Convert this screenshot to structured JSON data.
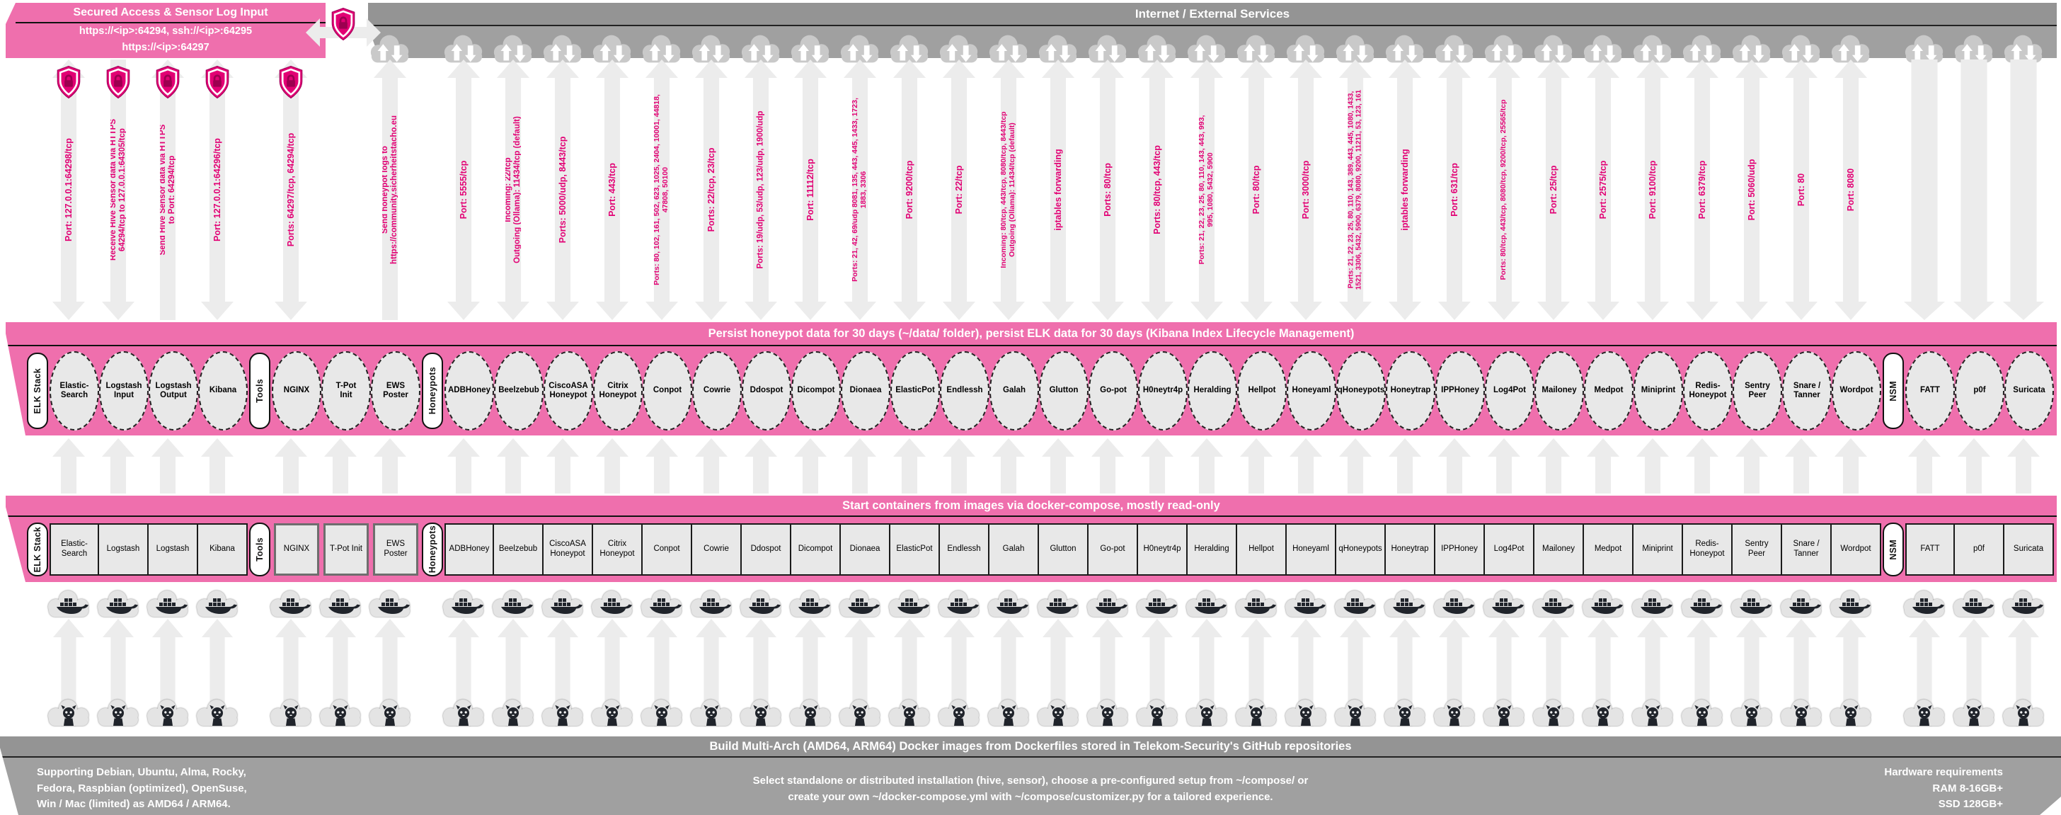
{
  "colors": {
    "telekom_magenta": "#e20074",
    "band_pink": "#ef6fad",
    "banner_gray": "#9c9c9c",
    "node_gray": "#e8e8e8"
  },
  "secured_box": {
    "title": "Secured Access & Sensor Log Input",
    "line1": "https://<ip>:64294, ssh://<ip>:64295",
    "line2": "https://<ip>:64297"
  },
  "internet_banner": {
    "title": "Internet / External Services"
  },
  "persist_band": {
    "title": "Persist honeypot data for 30 days (~/data/ folder), persist ELK data for 30 days (Kibana Index Lifecycle Management)"
  },
  "compose_band": {
    "title": "Start containers from images via docker-compose, mostly read-only"
  },
  "build_band": {
    "title": "Build Multi-Arch (AMD64, ARM64) Docker images from Dockerfiles stored in Telekom-Security's GitHub repositories",
    "left_note": "Supporting Debian, Ubuntu, Alma, Rocky,\nFedora, Raspbian (optimized), OpenSuse,\nWin / Mac (limited) as AMD64 / ARM64.",
    "center_note": "Select standalone or distributed installation (hive, sensor), choose a pre-configured setup from ~/compose/ or\ncreate your own ~/docker-compose.yml with ~/compose/customizer.py for a tailored experience.",
    "right_note": "Hardware requirements\nRAM 8-16GB+\nSSD 128GB+"
  },
  "pills": [
    "ELK Stack",
    "Tools",
    "Honeypots",
    "NSM"
  ],
  "columns": [
    {
      "group": 0,
      "name": "Elastic-\nSearch",
      "box": "Elastic-\nSearch",
      "port": "Port: 127.0.0.1:64298/tcp",
      "arrow": "both",
      "shield": true,
      "cloud": false
    },
    {
      "group": 0,
      "name": "Logstash\nInput",
      "box": "Logstash",
      "port": "Receive Hive Sensor data via HTTPS\n64294/tcp to 127.0.0.1:64305/tcp",
      "arrow": "down",
      "shield": true,
      "cloud": false
    },
    {
      "group": 0,
      "name": "Logstash\nOutput",
      "box": "Logstash",
      "port": "Send Hive Sensor data via HTTPS\nto Port: 64294/tcp",
      "arrow": "up",
      "shield": true,
      "cloud": false
    },
    {
      "group": 0,
      "name": "Kibana",
      "box": "Kibana",
      "port": "Port: 127.0.0.1:64296/tcp",
      "arrow": "both",
      "shield": true,
      "cloud": false
    },
    {
      "group": 1,
      "name": "NGINX",
      "box": "NGINX",
      "port": "Ports: 64297/tcp, 64294/tcp",
      "arrow": "both",
      "shield": true,
      "cloud": false
    },
    {
      "group": 1,
      "name": "T-Pot\nInit",
      "box": "T-Pot Init",
      "port": "",
      "arrow": "none",
      "shield": false,
      "cloud": false
    },
    {
      "group": 1,
      "name": "EWS\nPoster",
      "box": "EWS\nPoster",
      "port": "Send honeypot logs to\nhttps://community.sicherheitstacho.eu",
      "arrow": "up",
      "shield": false,
      "cloud": true
    },
    {
      "group": 2,
      "name": "ADBHoney",
      "box": "ADBHoney",
      "port": "Port: 5555/tcp",
      "arrow": "both",
      "shield": false,
      "cloud": true
    },
    {
      "group": 2,
      "name": "Beelzebub",
      "box": "Beelzebub",
      "port": "Incoming: 22/tcp\nOutgoing (Ollama): 11434/tcp (default)",
      "arrow": "both",
      "shield": false,
      "cloud": true
    },
    {
      "group": 2,
      "name": "CiscoASA\nHoneypot",
      "box": "CiscoASA\nHoneypot",
      "port": "Ports: 5000/udp, 8443/tcp",
      "arrow": "both",
      "shield": false,
      "cloud": true
    },
    {
      "group": 2,
      "name": "Citrix\nHoneypot",
      "box": "Citrix\nHoneypot",
      "port": "Port: 443/tcp",
      "arrow": "both",
      "shield": false,
      "cloud": true
    },
    {
      "group": 2,
      "name": "Conpot",
      "box": "Conpot",
      "port": "Ports: 80, 102, 161, 502, 623, 1025, 2404, 10001, 44818,\n47808, 50100",
      "arrow": "both",
      "shield": false,
      "cloud": true
    },
    {
      "group": 2,
      "name": "Cowrie",
      "box": "Cowrie",
      "port": "Ports: 22/tcp, 23/tcp",
      "arrow": "both",
      "shield": false,
      "cloud": true
    },
    {
      "group": 2,
      "name": "Ddospot",
      "box": "Ddospot",
      "port": "Ports: 19/udp, 53/udp, 123/udp, 1900/udp",
      "arrow": "both",
      "shield": false,
      "cloud": true
    },
    {
      "group": 2,
      "name": "Dicompot",
      "box": "Dicompot",
      "port": "Port: 11112/tcp",
      "arrow": "both",
      "shield": false,
      "cloud": true
    },
    {
      "group": 2,
      "name": "Dionaea",
      "box": "Dionaea",
      "port": "Ports: 21, 42, 69/udp 8081, 135, 443, 445, 1433, 1723,\n1883, 3306",
      "arrow": "both",
      "shield": false,
      "cloud": true
    },
    {
      "group": 2,
      "name": "ElasticPot",
      "box": "ElasticPot",
      "port": "Port: 9200/tcp",
      "arrow": "both",
      "shield": false,
      "cloud": true
    },
    {
      "group": 2,
      "name": "Endlessh",
      "box": "Endlessh",
      "port": "Port: 22/tcp",
      "arrow": "both",
      "shield": false,
      "cloud": true
    },
    {
      "group": 2,
      "name": "Galah",
      "box": "Galah",
      "port": "Incoming: 80/tcp, 443/tcp, 8080/tcp, 8443/tcp\nOutgoing (Ollama): 11434/tcp (default)",
      "arrow": "both",
      "shield": false,
      "cloud": true
    },
    {
      "group": 2,
      "name": "Glutton",
      "box": "Glutton",
      "port": "iptables forwarding",
      "arrow": "both",
      "shield": false,
      "cloud": true
    },
    {
      "group": 2,
      "name": "Go-pot",
      "box": "Go-pot",
      "port": "Ports: 80/tcp",
      "arrow": "both",
      "shield": false,
      "cloud": true
    },
    {
      "group": 2,
      "name": "H0neytr4p",
      "box": "H0neytr4p",
      "port": "Ports: 80/tcp, 443/tcp",
      "arrow": "both",
      "shield": false,
      "cloud": true
    },
    {
      "group": 2,
      "name": "Heralding",
      "box": "Heralding",
      "port": "Ports: 21, 22, 23, 25, 80, 110, 143, 443, 993,\n995, 1080, 5432, 5900",
      "arrow": "both",
      "shield": false,
      "cloud": true
    },
    {
      "group": 2,
      "name": "Hellpot",
      "box": "Hellpot",
      "port": "Port: 80/tcp",
      "arrow": "both",
      "shield": false,
      "cloud": true
    },
    {
      "group": 2,
      "name": "Honeyaml",
      "box": "Honeyaml",
      "port": "Port: 3000/tcp",
      "arrow": "both",
      "shield": false,
      "cloud": true
    },
    {
      "group": 2,
      "name": "qHoneypots",
      "box": "qHoneypots",
      "port": "Ports: 21, 22, 23, 25, 80, 110, 143, 389, 443, 445, 1080, 1433,\n1521, 3306, 5432, 5900, 6379, 8080, 9200, 11211, 53, 123, 161",
      "arrow": "both",
      "shield": false,
      "cloud": true
    },
    {
      "group": 2,
      "name": "Honeytrap",
      "box": "Honeytrap",
      "port": "iptables forwarding",
      "arrow": "both",
      "shield": false,
      "cloud": true
    },
    {
      "group": 2,
      "name": "IPPHoney",
      "box": "IPPHoney",
      "port": "Port: 631/tcp",
      "arrow": "both",
      "shield": false,
      "cloud": true
    },
    {
      "group": 2,
      "name": "Log4Pot",
      "box": "Log4Pot",
      "port": "Ports: 80/tcp, 443/tcp, 8080/tcp, 9200/tcp, 25565/tcp",
      "arrow": "both",
      "shield": false,
      "cloud": true
    },
    {
      "group": 2,
      "name": "Mailoney",
      "box": "Mailoney",
      "port": "Port: 25/tcp",
      "arrow": "both",
      "shield": false,
      "cloud": true
    },
    {
      "group": 2,
      "name": "Medpot",
      "box": "Medpot",
      "port": "Port: 2575/tcp",
      "arrow": "both",
      "shield": false,
      "cloud": true
    },
    {
      "group": 2,
      "name": "Miniprint",
      "box": "Miniprint",
      "port": "Port: 9100/tcp",
      "arrow": "both",
      "shield": false,
      "cloud": true
    },
    {
      "group": 2,
      "name": "Redis-\nHoneypot",
      "box": "Redis-\nHoneypot",
      "port": "Port: 6379/tcp",
      "arrow": "both",
      "shield": false,
      "cloud": true
    },
    {
      "group": 2,
      "name": "Sentry\nPeer",
      "box": "Sentry\nPeer",
      "port": "Port: 5060/udp",
      "arrow": "both",
      "shield": false,
      "cloud": true
    },
    {
      "group": 2,
      "name": "Snare /\nTanner",
      "box": "Snare /\nTanner",
      "port": "Port: 80",
      "arrow": "both",
      "shield": false,
      "cloud": true
    },
    {
      "group": 2,
      "name": "Wordpot",
      "box": "Wordpot",
      "port": "Port: 8080",
      "arrow": "both",
      "shield": false,
      "cloud": true
    },
    {
      "group": 3,
      "name": "FATT",
      "box": "FATT",
      "port": "",
      "arrow": "downwide",
      "shield": false,
      "cloud": true
    },
    {
      "group": 3,
      "name": "p0f",
      "box": "p0f",
      "port": "",
      "arrow": "downwide",
      "shield": false,
      "cloud": true
    },
    {
      "group": 3,
      "name": "Suricata",
      "box": "Suricata",
      "port": "",
      "arrow": "downwide",
      "shield": false,
      "cloud": true
    }
  ]
}
